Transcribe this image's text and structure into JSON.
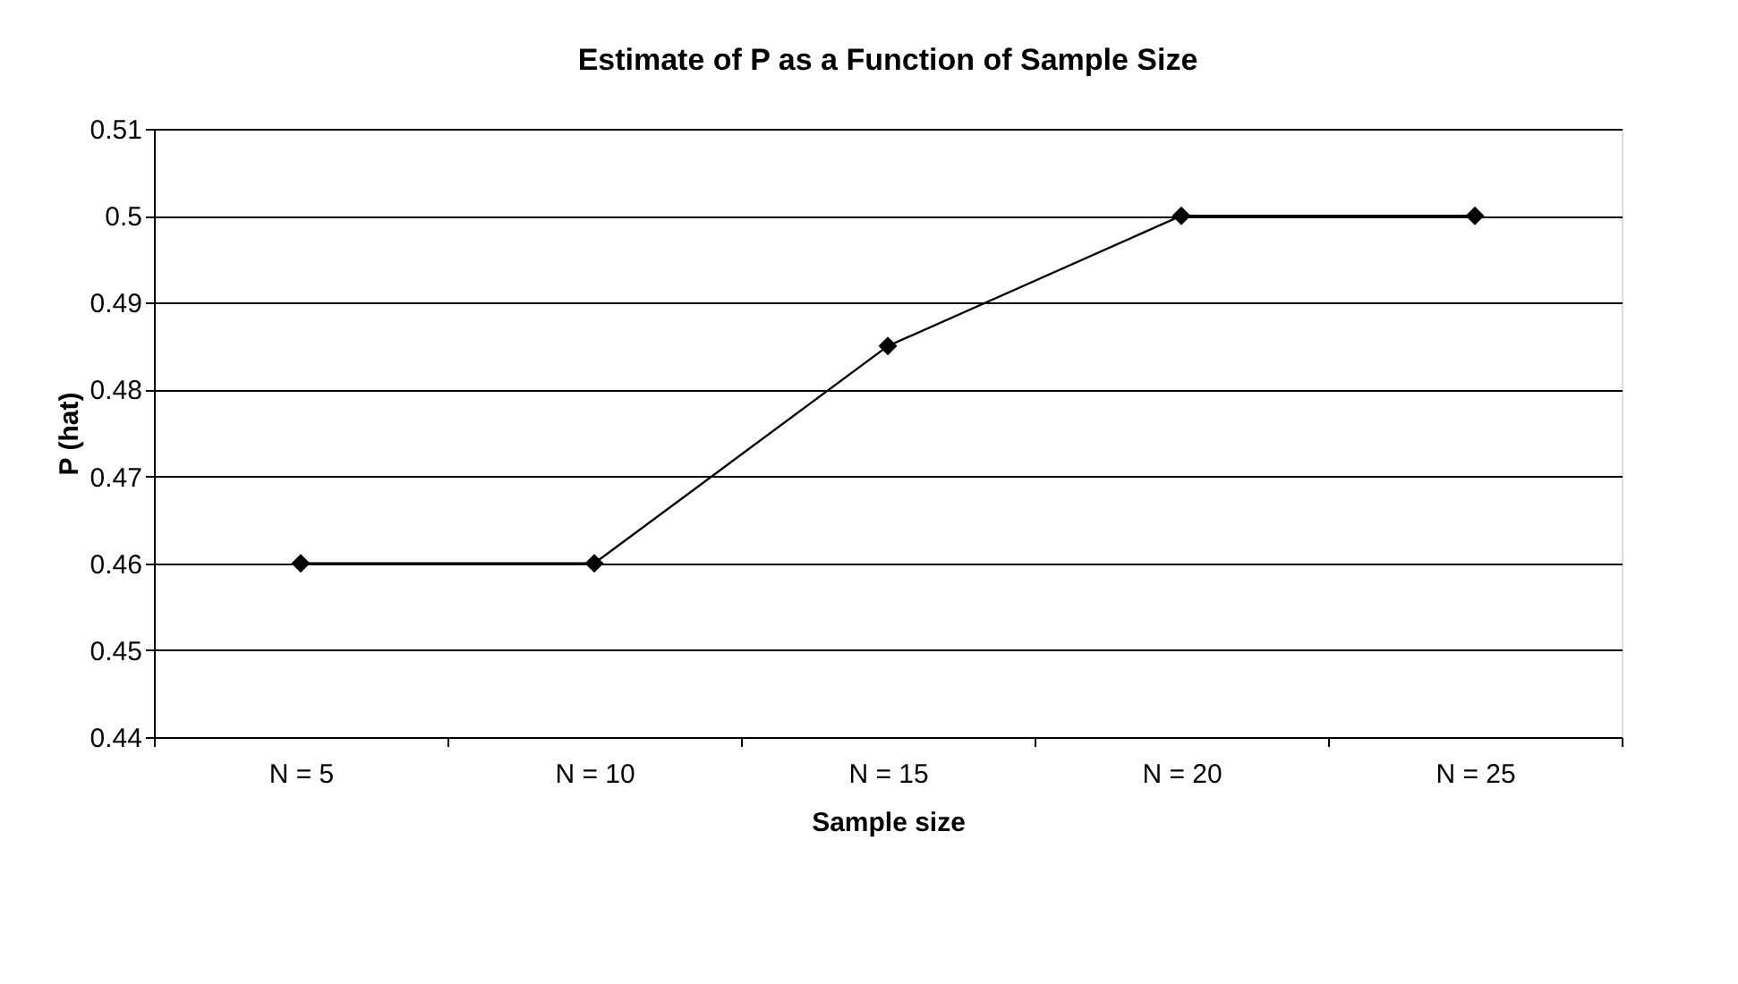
{
  "chart_data": {
    "type": "line",
    "title": "Estimate of P as a Function of Sample Size",
    "xlabel": "Sample size",
    "ylabel": "P (hat)",
    "categories": [
      "N = 5",
      "N = 10",
      "N = 15",
      "N = 20",
      "N = 25"
    ],
    "series": [
      {
        "color": "#000000",
        "values": [
          0.46,
          0.46,
          0.485,
          0.5,
          0.5
        ]
      }
    ],
    "ylim": [
      0.44,
      0.51
    ],
    "yticks": [
      0.44,
      0.45,
      0.46,
      0.47,
      0.48,
      0.49,
      0.5,
      0.51
    ],
    "grid": "y",
    "legend": false,
    "marker": "diamond",
    "line_style": "solid"
  }
}
